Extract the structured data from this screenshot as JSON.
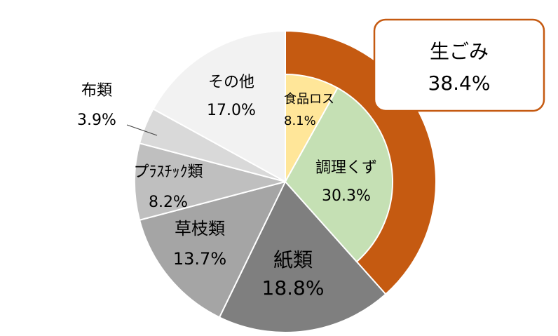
{
  "chart_data": {
    "type": "pie",
    "categories": [
      "生ごみ",
      "紙類",
      "草枝類",
      "プﾗｽﾁｯｸ類",
      "布類",
      "その他"
    ],
    "values": [
      38.4,
      18.8,
      13.7,
      8.2,
      3.9,
      17.0
    ],
    "value_labels": [
      "38.4%",
      "18.8%",
      "13.7%",
      "8.2%",
      "3.9%",
      "17.0%"
    ],
    "colors": [
      "#c55a11",
      "#7f7f7f",
      "#a5a5a5",
      "#bfbfbf",
      "#d9d9d9",
      "#f2f2f2"
    ],
    "breakdown": {
      "categories": [
        "食品ロス",
        "調理くず"
      ],
      "values": [
        8.1,
        30.3
      ],
      "value_labels": [
        "8.1%",
        "30.3%"
      ],
      "colors": [
        "#ffe699",
        "#c5e0b4"
      ]
    }
  }
}
